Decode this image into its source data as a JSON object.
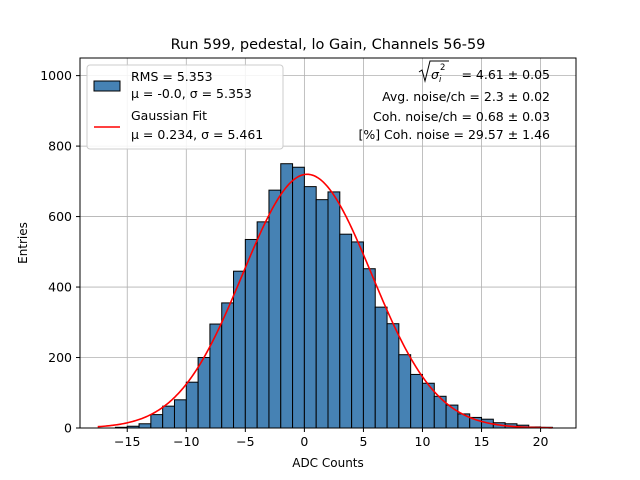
{
  "chart_data": {
    "type": "histogram",
    "title": "Run 599, pedestal, lo Gain, Channels 56-59",
    "xlabel": "ADC Counts",
    "ylabel": "Entries",
    "xlim": [
      -19,
      23
    ],
    "ylim": [
      0,
      1050
    ],
    "grid": true,
    "xticks": [
      -15,
      -10,
      -5,
      0,
      5,
      10,
      15,
      20
    ],
    "xtick_labels": [
      "−15",
      "−10",
      "−5",
      "0",
      "5",
      "10",
      "15",
      "20"
    ],
    "yticks": [
      0,
      200,
      400,
      600,
      800,
      1000
    ],
    "ytick_labels": [
      "0",
      "200",
      "400",
      "600",
      "800",
      "1000"
    ],
    "bin_width": 1,
    "bin_starts": [
      -17,
      -16,
      -15,
      -14,
      -13,
      -12,
      -11,
      -10,
      -9,
      -8,
      -7,
      -6,
      -5,
      -4,
      -3,
      -2,
      -1,
      0,
      1,
      2,
      3,
      4,
      5,
      6,
      7,
      8,
      9,
      10,
      11,
      12,
      13,
      14,
      15,
      16,
      17,
      18,
      19,
      20
    ],
    "counts": [
      0,
      2,
      5,
      12,
      38,
      62,
      80,
      130,
      200,
      295,
      355,
      445,
      535,
      585,
      675,
      750,
      740,
      685,
      648,
      670,
      550,
      528,
      452,
      343,
      296,
      208,
      152,
      127,
      90,
      65,
      40,
      30,
      25,
      15,
      12,
      8,
      3,
      2
    ],
    "fit_curve": {
      "name": "Gaussian Fit",
      "mu": 0.234,
      "sigma": 5.461,
      "amplitude": 720,
      "x_range": [
        -17.5,
        21
      ],
      "color": "#ff0000"
    },
    "legend": {
      "placement": "top-left",
      "entries": [
        {
          "line1": "RMS = 5.353",
          "line2": "μ = -0.0, σ = 5.353",
          "color": "#4682b4"
        },
        {
          "line1": "Gaussian Fit",
          "line2": "μ = 0.234, σ = 5.461",
          "color": "#ff0000"
        }
      ]
    },
    "annotations": {
      "sigma_i": "= 4.61 ± 0.05",
      "avg_noise": "Avg. noise/ch = 2.3 ± 0.02",
      "coh_noise": "Coh. noise/ch = 0.68 ± 0.03",
      "pct_coh_noise": "[%] Coh. noise = 29.57 ± 1.46"
    },
    "bar_color": "#4682b4"
  }
}
